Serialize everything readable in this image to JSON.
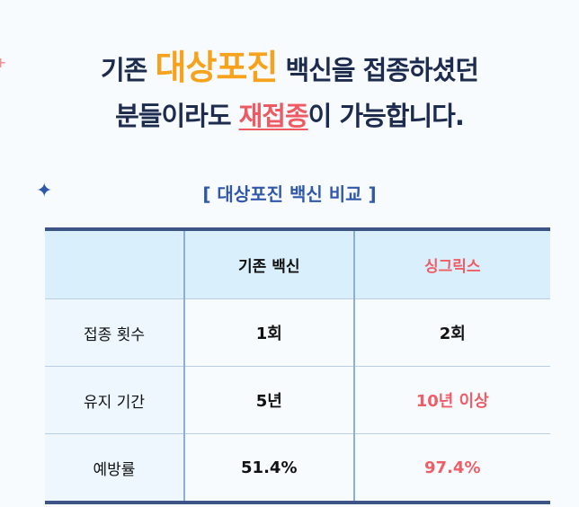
{
  "headline": {
    "line1": [
      "기존",
      "대상포진",
      "백신을 접종하셨던"
    ],
    "line2": [
      "분들이라도",
      "재접종",
      "이 가능합니다."
    ]
  },
  "subtitle": "[ 대상포진 백신 비교 ]",
  "table": {
    "header": [
      "기존 백신",
      "싱그릭스"
    ],
    "rows": [
      [
        "접종 횟수",
        "1회",
        "2회"
      ],
      [
        "유지 기간",
        "5년",
        "10년 이상"
      ],
      [
        "예방률",
        "51.4%",
        "97.4%"
      ]
    ]
  }
}
